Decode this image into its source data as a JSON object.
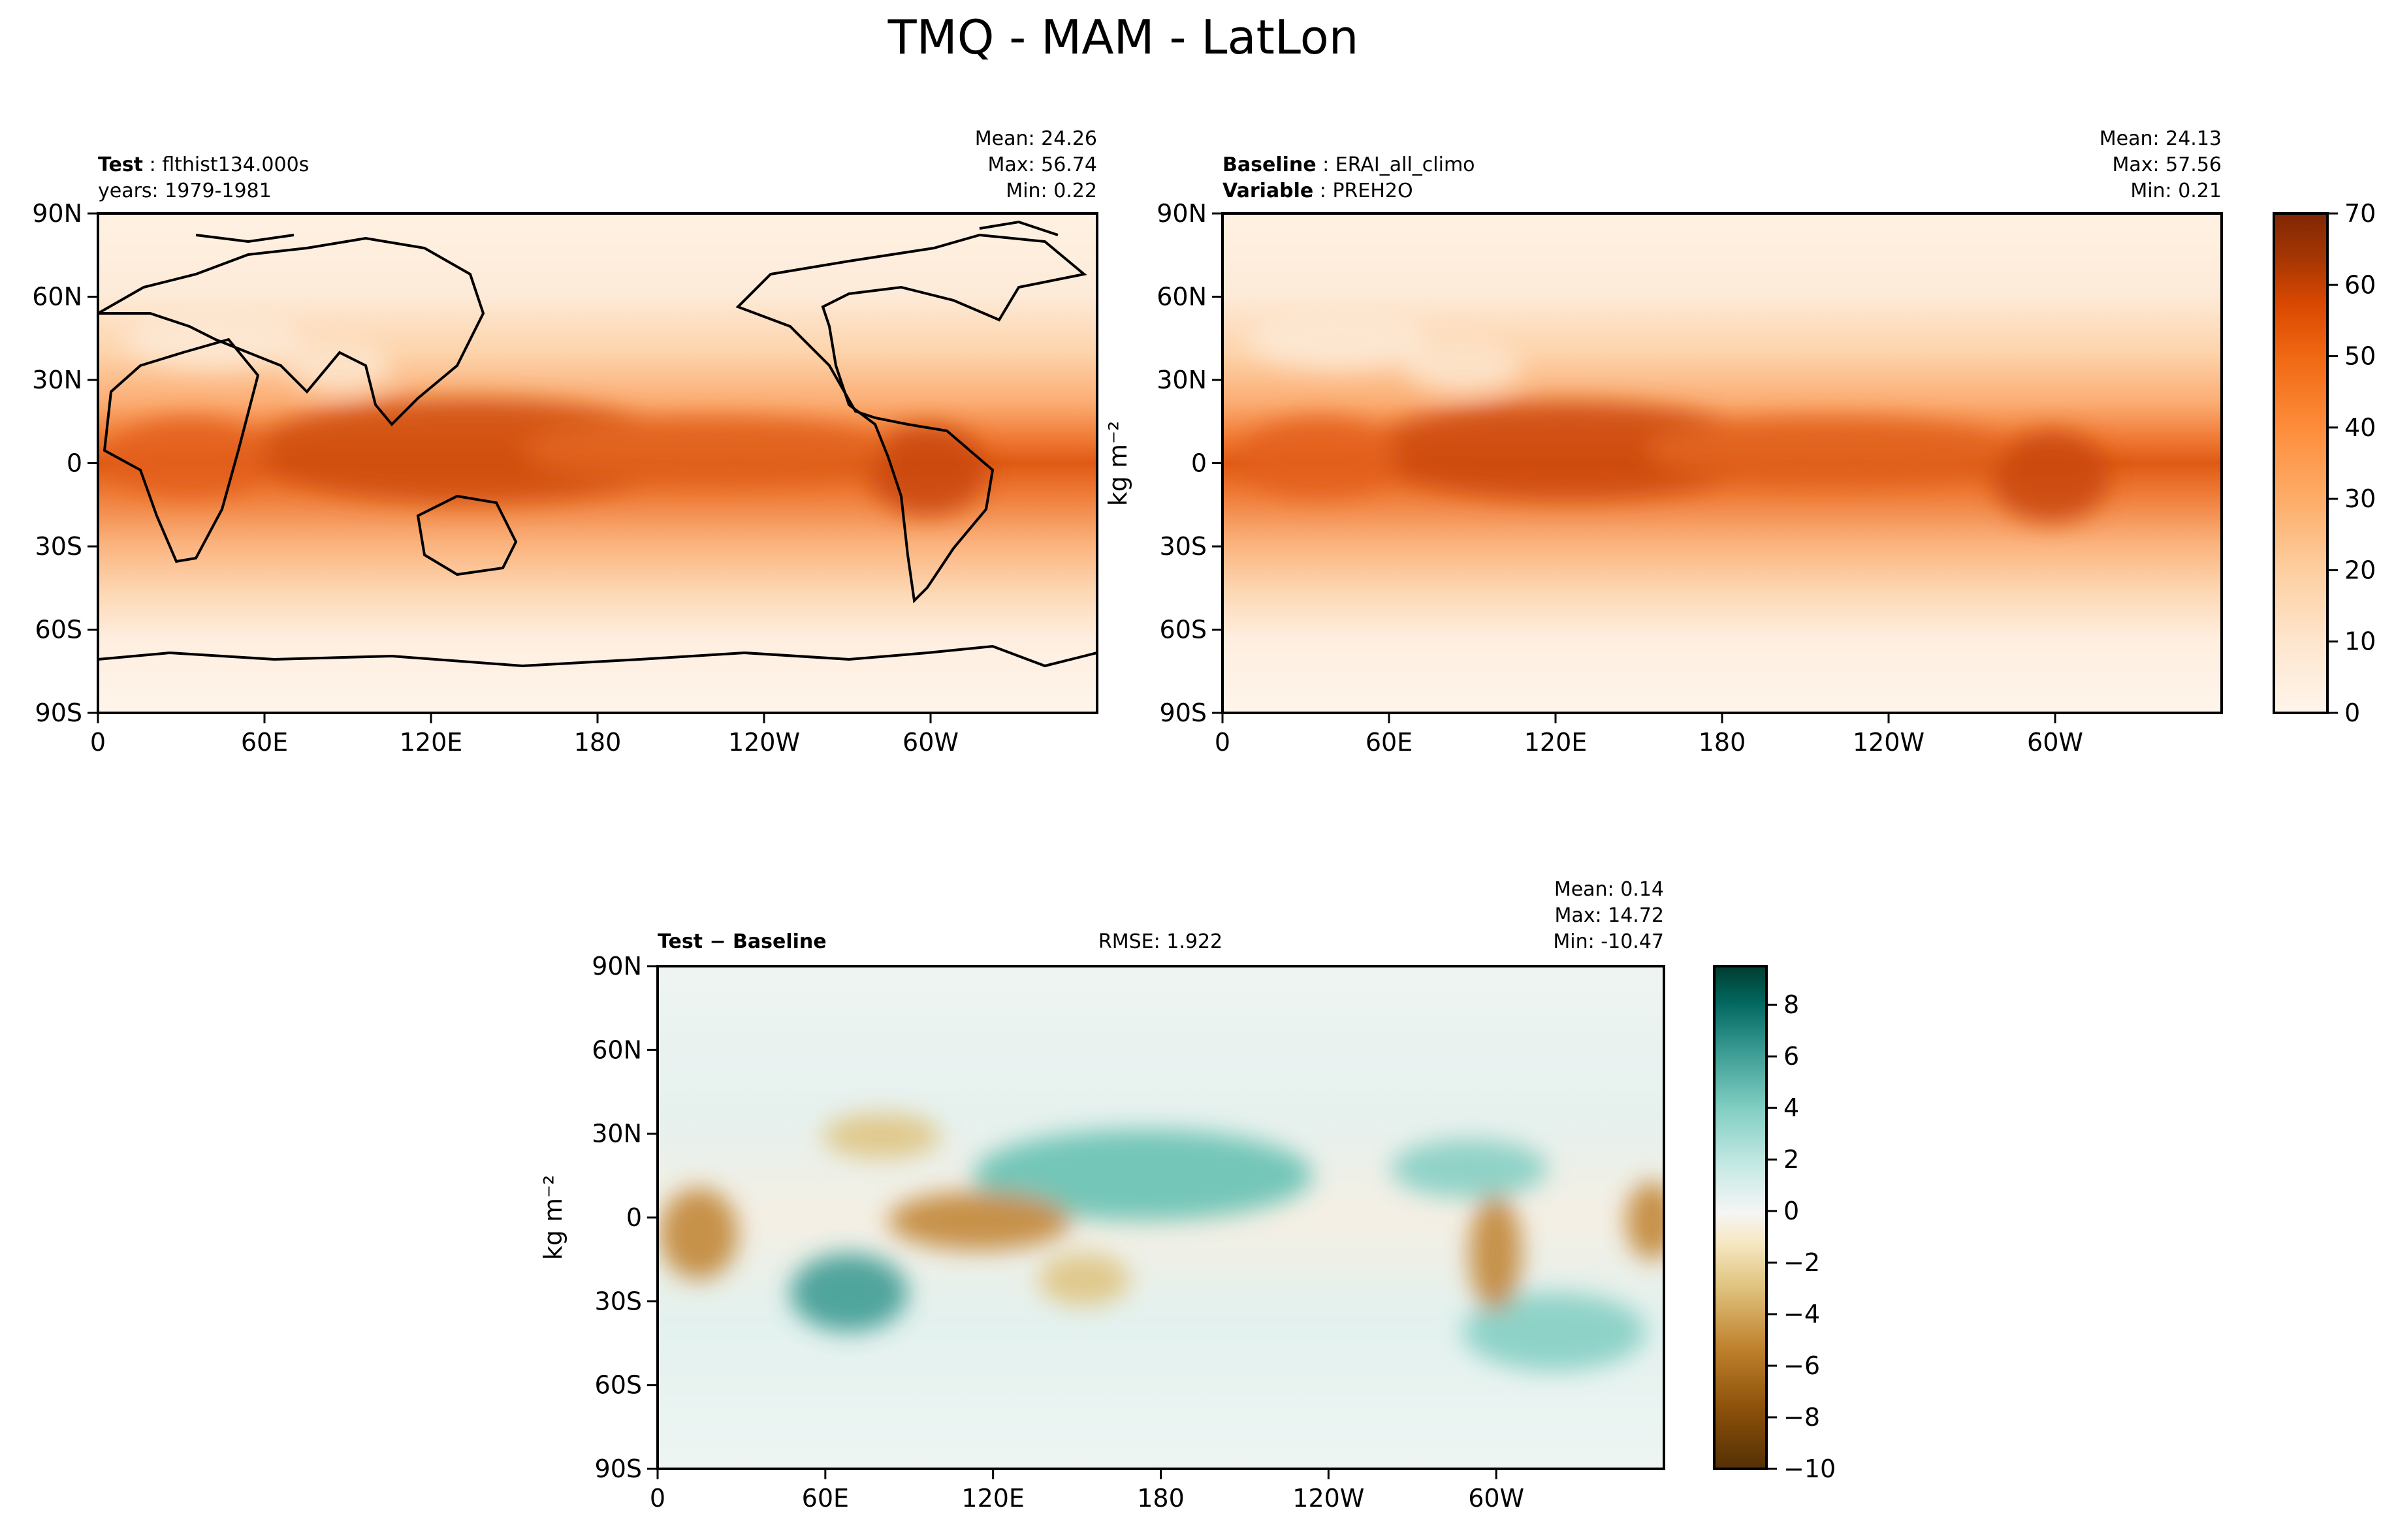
{
  "figure": {
    "title": "TMQ - MAM - LatLon"
  },
  "panels": {
    "test": {
      "label_bold": "Test",
      "label_value": "flthist134.000s",
      "subline": "years: 1979-1981",
      "stats": [
        "Mean: 24.26",
        "Max: 56.74",
        "Min:  0.22"
      ]
    },
    "baseline": {
      "label_bold": "Baseline",
      "label_value": "ERAI_all_climo",
      "label2_bold": "Variable",
      "label2_value": "PREH2O",
      "stats": [
        "Mean: 24.13",
        "Max: 57.56",
        "Min:  0.21"
      ]
    },
    "diff": {
      "label_bold": "Test − Baseline",
      "rmse": "RMSE: 1.922",
      "stats": [
        "Mean:  0.14",
        "Max: 14.72",
        "Min: -10.47"
      ]
    }
  },
  "chart_data": [
    {
      "type": "heatmap",
      "panel": "test",
      "variable": "TMQ",
      "x_ticks": [
        "0",
        "60E",
        "120E",
        "180",
        "120W",
        "60W"
      ],
      "y_ticks": [
        "90N",
        "60N",
        "30N",
        "0",
        "30S",
        "60S",
        "90S"
      ],
      "xlim": [
        0,
        360
      ],
      "ylim": [
        -90,
        90
      ],
      "stats": {
        "mean": 24.26,
        "max": 56.74,
        "min": 0.22
      }
    },
    {
      "type": "heatmap",
      "panel": "baseline",
      "variable": "PREH2O",
      "x_ticks": [
        "0",
        "60E",
        "120E",
        "180",
        "120W",
        "60W"
      ],
      "y_ticks": [
        "90N",
        "60N",
        "30N",
        "0",
        "30S",
        "60S",
        "90S"
      ],
      "xlim": [
        0,
        360
      ],
      "ylim": [
        -90,
        90
      ],
      "ylabel": "kg m⁻²",
      "stats": {
        "mean": 24.13,
        "max": 57.56,
        "min": 0.21
      },
      "colorbar": {
        "ticks": [
          "0",
          "10",
          "20",
          "30",
          "40",
          "50",
          "60",
          "70"
        ],
        "range": [
          0,
          70
        ],
        "colors": [
          "#fff5eb",
          "#fee6ce",
          "#fdd0a2",
          "#fdae6b",
          "#fd8d3c",
          "#f16913",
          "#d94801",
          "#a63603",
          "#7f2704"
        ]
      }
    },
    {
      "type": "heatmap",
      "panel": "diff",
      "x_ticks": [
        "0",
        "60E",
        "120E",
        "180",
        "120W",
        "60W"
      ],
      "y_ticks": [
        "90N",
        "60N",
        "30N",
        "0",
        "30S",
        "60S",
        "90S"
      ],
      "xlim": [
        0,
        360
      ],
      "ylim": [
        -90,
        90
      ],
      "ylabel": "kg m⁻²",
      "stats": {
        "mean": 0.14,
        "max": 14.72,
        "min": -10.47,
        "rmse": 1.922
      },
      "colorbar": {
        "ticks": [
          "8",
          "6",
          "4",
          "2",
          "0",
          "−2",
          "−4",
          "−6",
          "−8",
          "−10"
        ],
        "range": [
          -10,
          9.5
        ],
        "colors": [
          "#543005",
          "#8c510a",
          "#bf812d",
          "#dfc27d",
          "#f6e8c3",
          "#f5f5f5",
          "#c7eae5",
          "#80cdc1",
          "#35978f",
          "#01665e",
          "#003c30"
        ]
      }
    }
  ]
}
